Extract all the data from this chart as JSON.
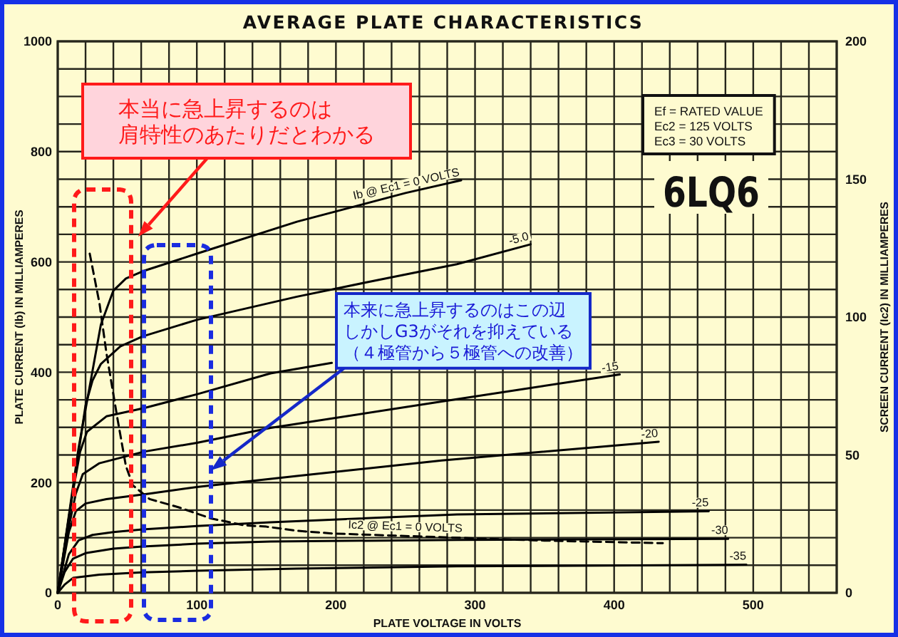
{
  "chart_data": {
    "type": "line",
    "title": "AVERAGE PLATE CHARACTERISTICS",
    "xlabel": "PLATE VOLTAGE IN VOLTS",
    "ylabel": "PLATE CURRENT (Ib) IN MILLIAMPERES",
    "y2label": "SCREEN CURRENT (Ic2) IN MILLIAMPERES",
    "xlim": [
      0,
      560
    ],
    "xticks": [
      0,
      {
        "value": 20,
        "label": null
      },
      {
        "value": 40,
        "label": null
      },
      {
        "value": 60,
        "label": null
      },
      {
        "value": 80,
        "label": null
      },
      100,
      {
        "value": 120,
        "label": null
      },
      {
        "value": 140,
        "label": null
      },
      {
        "value": 160,
        "label": null
      },
      {
        "value": 180,
        "label": null
      },
      200,
      {
        "value": 220,
        "label": null
      },
      {
        "value": 240,
        "label": null
      },
      {
        "value": 260,
        "label": null
      },
      {
        "value": 280,
        "label": null
      },
      300,
      {
        "value": 320,
        "label": null
      },
      {
        "value": 340,
        "label": null
      },
      {
        "value": 360,
        "label": null
      },
      {
        "value": 380,
        "label": null
      },
      400,
      {
        "value": 420,
        "label": null
      },
      {
        "value": 440,
        "label": null
      },
      {
        "value": 460,
        "label": null
      },
      {
        "value": 480,
        "label": null
      },
      500,
      {
        "value": 520,
        "label": null
      },
      {
        "value": 540,
        "label": null
      },
      {
        "value": 560,
        "label": null
      }
    ],
    "ylim": [
      0,
      1000
    ],
    "yticks": [
      0,
      {
        "value": 50,
        "label": null
      },
      {
        "value": 100,
        "label": null
      },
      {
        "value": 150,
        "label": null
      },
      200,
      {
        "value": 250,
        "label": null
      },
      {
        "value": 300,
        "label": null
      },
      {
        "value": 350,
        "label": null
      },
      400,
      {
        "value": 450,
        "label": null
      },
      {
        "value": 500,
        "label": null
      },
      {
        "value": 550,
        "label": null
      },
      600,
      {
        "value": 650,
        "label": null
      },
      {
        "value": 700,
        "label": null
      },
      {
        "value": 750,
        "label": null
      },
      800,
      {
        "value": 850,
        "label": null
      },
      {
        "value": 900,
        "label": null
      },
      {
        "value": 950,
        "label": null
      },
      1000
    ],
    "y2lim": [
      0,
      200
    ],
    "y2ticks": [
      0,
      50,
      100,
      150,
      200
    ],
    "grid": true,
    "series": [
      {
        "name": "Ib @ Ec1 = 0 VOLTS",
        "color": "#000000",
        "x": [
          0,
          15,
          31,
          40,
          49,
          61,
          100,
          172,
          250,
          290
        ],
        "values": [
          0,
          263,
          486,
          548,
          570,
          583,
          615,
          673,
          725,
          748
        ]
      },
      {
        "name": "-5.0",
        "color": "#000000",
        "x": [
          0,
          15,
          20,
          25,
          31,
          45,
          61,
          100,
          172,
          220,
          287,
          340
        ],
        "values": [
          0,
          255,
          340,
          385,
          415,
          447,
          465,
          495,
          537,
          562,
          596,
          632
        ]
      },
      {
        "color": "#000000",
        "x": [
          0,
          10,
          16,
          21,
          35,
          62,
          100,
          153,
          197
        ],
        "values": [
          0,
          170,
          255,
          292,
          320,
          335,
          360,
          398,
          417
        ]
      },
      {
        "name": "-15",
        "color": "#000000",
        "x": [
          0,
          8,
          13,
          18,
          30,
          62,
          100,
          153,
          276,
          404
        ],
        "values": [
          0,
          120,
          180,
          215,
          235,
          256,
          272,
          299,
          347,
          396
        ]
      },
      {
        "name": "-20",
        "color": "#000000",
        "x": [
          0,
          8,
          13,
          20,
          35,
          66,
          100,
          172,
          276,
          432
        ],
        "values": [
          0,
          110,
          148,
          162,
          170,
          180,
          192,
          212,
          240,
          274
        ]
      },
      {
        "name": "-25",
        "color": "#000000",
        "x": [
          0,
          8,
          15,
          25,
          40,
          61,
          100,
          153,
          287,
          468
        ],
        "values": [
          0,
          70,
          95,
          105,
          110,
          115,
          121,
          128,
          142,
          148
        ]
      },
      {
        "name": "-30",
        "color": "#000000",
        "x": [
          0,
          5,
          11,
          20,
          40,
          61,
          100,
          153,
          287,
          482
        ],
        "values": [
          0,
          38,
          62,
          72,
          80,
          84,
          89,
          93,
          96,
          98
        ]
      },
      {
        "name": "-35",
        "color": "#000000",
        "x": [
          0,
          5,
          11,
          30,
          61,
          100,
          172,
          287,
          495
        ],
        "values": [
          0,
          15,
          27,
          33,
          37,
          40,
          44,
          48,
          51
        ]
      },
      {
        "name": "Ic2 @ Ec1 = 0 VOLTS",
        "color": "#000000",
        "axis": "y2",
        "line_style": "dashed",
        "x": [
          23,
          30,
          35,
          43,
          49,
          54,
          66,
          87,
          110,
          134,
          150,
          172,
          198,
          345,
          435
        ],
        "values": [
          123,
          105,
          87,
          63,
          46,
          39,
          34,
          31,
          27,
          24.5,
          24,
          22.5,
          21.5,
          19,
          18
        ]
      }
    ],
    "annotations": [
      "Ef = RATED VALUE",
      "Ec2 = 125 VOLTS",
      "Ec3 = 30 VOLTS",
      "6LQ6",
      "本当に急上昇するのは",
      "肩特性のあたりだとわかる",
      "本来に急上昇するのはこの辺",
      "しかしG3がそれを抑えている",
      "（４極管から５極管への改善）"
    ]
  }
}
